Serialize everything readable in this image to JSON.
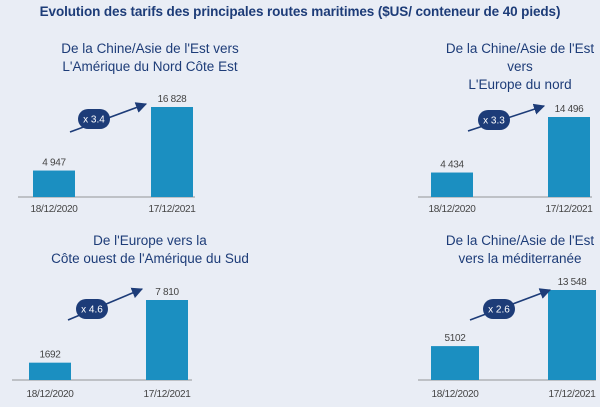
{
  "title": "Evolution des tarifs des principales routes maritimes ($US/ conteneur de 40 pieds)",
  "colors": {
    "bar": "#1b8fc1",
    "title": "#1d3c78",
    "text": "#444444",
    "arrow": "#1d3c78",
    "background": "#e9edf5",
    "axis": "#777777"
  },
  "chart_data": [
    {
      "type": "bar",
      "title_lines": [
        "De la Chine/Asie de l'Est vers",
        "L'Amérique du Nord Côte Est"
      ],
      "categories": [
        "18/12/2020",
        "17/12/2021"
      ],
      "values": [
        4947,
        16828
      ],
      "value_labels": [
        "4 947",
        "16 828"
      ],
      "multiplier": "x 3.4",
      "ylim": [
        0,
        17000
      ]
    },
    {
      "type": "bar",
      "title_lines": [
        "De la Chine/Asie de l'Est vers",
        "L'Europe du nord"
      ],
      "categories": [
        "18/12/2020",
        "17/12/2021"
      ],
      "values": [
        4434,
        14496
      ],
      "value_labels": [
        "4 434",
        "14 496"
      ],
      "multiplier": "x 3.3",
      "ylim": [
        0,
        17000
      ]
    },
    {
      "type": "bar",
      "title_lines": [
        "De l'Europe vers la",
        "Côte ouest de l'Amérique du Sud"
      ],
      "categories": [
        "18/12/2020",
        "17/12/2021"
      ],
      "values": [
        1692,
        7810
      ],
      "value_labels": [
        "1692",
        "7 810"
      ],
      "multiplier": "x 4.6",
      "ylim": [
        0,
        8000
      ]
    },
    {
      "type": "bar",
      "title_lines": [
        "De la Chine/Asie de l'Est",
        "vers la méditerranée"
      ],
      "categories": [
        "18/12/2020",
        "17/12/2021"
      ],
      "values": [
        5102,
        13548
      ],
      "value_labels": [
        "5102",
        "13 548"
      ],
      "multiplier": "x 2.6",
      "ylim": [
        0,
        14000
      ]
    }
  ]
}
